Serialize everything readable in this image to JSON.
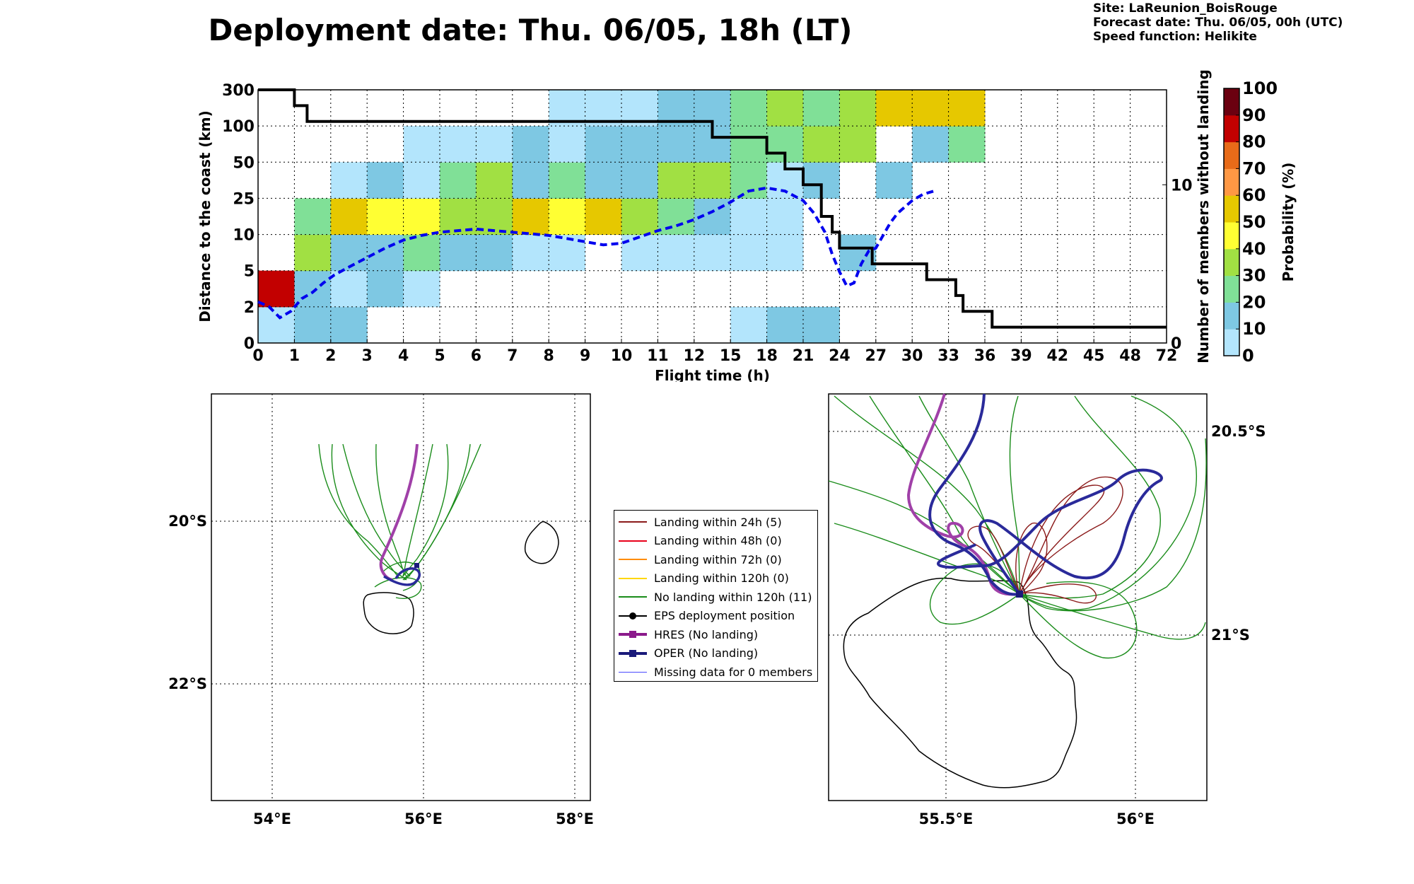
{
  "title": "Deployment date: Thu. 06/05, 18h (LT)",
  "meta": {
    "site": "Site: LaReunion_BoisRouge",
    "forecast": "Forecast date: Thu. 06/05, 00h (UTC)",
    "speed": "Speed function: Helikite"
  },
  "chart_data": [
    {
      "type": "heatmap",
      "xlabel": "Flight time (h)",
      "ylabel": "Distance to the coast (km)",
      "y2label": "Number of members without landing",
      "x_tick_labels": [
        "0",
        "1",
        "2",
        "3",
        "4",
        "5",
        "6",
        "7",
        "8",
        "9",
        "10",
        "11",
        "12",
        "15",
        "18",
        "21",
        "24",
        "27",
        "30",
        "33",
        "36",
        "39",
        "42",
        "45",
        "48",
        "72"
      ],
      "y_tick_labels": [
        "0",
        "2",
        "5",
        "10",
        "25",
        "50",
        "100",
        "300"
      ],
      "y2_ticks": [
        0,
        10
      ],
      "y2_range": [
        0,
        16
      ],
      "colorbar": {
        "label": "Probability (%)",
        "ticks": [
          "0",
          "10",
          "20",
          "30",
          "40",
          "50",
          "60",
          "70",
          "80",
          "90",
          "100"
        ],
        "colors": [
          "#b3e5fc",
          "#7ec8e3",
          "#80e097",
          "#a1e043",
          "#ffff33",
          "#e6c800",
          "#ff9844",
          "#e86b19",
          "#c20000",
          "#6b0010"
        ]
      },
      "cells": [
        {
          "x": 0,
          "y": 0,
          "v": 5
        },
        {
          "x": 1,
          "y": 0,
          "v": 15
        },
        {
          "x": 2,
          "y": 0,
          "v": 15
        },
        {
          "x": 13,
          "y": 0,
          "v": 5
        },
        {
          "x": 14,
          "y": 0,
          "v": 15
        },
        {
          "x": 15,
          "y": 0,
          "v": 15
        },
        {
          "x": 0,
          "y": 1,
          "v": 85
        },
        {
          "x": 1,
          "y": 1,
          "v": 15
        },
        {
          "x": 2,
          "y": 1,
          "v": 5
        },
        {
          "x": 3,
          "y": 1,
          "v": 15
        },
        {
          "x": 4,
          "y": 1,
          "v": 5
        },
        {
          "x": 1,
          "y": 2,
          "v": 35
        },
        {
          "x": 2,
          "y": 2,
          "v": 15
        },
        {
          "x": 3,
          "y": 2,
          "v": 15
        },
        {
          "x": 4,
          "y": 2,
          "v": 25
        },
        {
          "x": 5,
          "y": 2,
          "v": 15
        },
        {
          "x": 6,
          "y": 2,
          "v": 15
        },
        {
          "x": 7,
          "y": 2,
          "v": 5
        },
        {
          "x": 8,
          "y": 2,
          "v": 5
        },
        {
          "x": 10,
          "y": 2,
          "v": 5
        },
        {
          "x": 11,
          "y": 2,
          "v": 5
        },
        {
          "x": 12,
          "y": 2,
          "v": 5
        },
        {
          "x": 13,
          "y": 2,
          "v": 5
        },
        {
          "x": 14,
          "y": 2,
          "v": 5
        },
        {
          "x": 16,
          "y": 2,
          "v": 15
        },
        {
          "x": 1,
          "y": 3,
          "v": 25
        },
        {
          "x": 2,
          "y": 3,
          "v": 55
        },
        {
          "x": 3,
          "y": 3,
          "v": 45
        },
        {
          "x": 4,
          "y": 3,
          "v": 45
        },
        {
          "x": 5,
          "y": 3,
          "v": 35
        },
        {
          "x": 6,
          "y": 3,
          "v": 35
        },
        {
          "x": 7,
          "y": 3,
          "v": 55
        },
        {
          "x": 8,
          "y": 3,
          "v": 45
        },
        {
          "x": 9,
          "y": 3,
          "v": 55
        },
        {
          "x": 10,
          "y": 3,
          "v": 35
        },
        {
          "x": 11,
          "y": 3,
          "v": 25
        },
        {
          "x": 12,
          "y": 3,
          "v": 15
        },
        {
          "x": 13,
          "y": 3,
          "v": 5
        },
        {
          "x": 14,
          "y": 3,
          "v": 5
        },
        {
          "x": 2,
          "y": 4,
          "v": 5
        },
        {
          "x": 3,
          "y": 4,
          "v": 15
        },
        {
          "x": 4,
          "y": 4,
          "v": 5
        },
        {
          "x": 5,
          "y": 4,
          "v": 25
        },
        {
          "x": 6,
          "y": 4,
          "v": 35
        },
        {
          "x": 7,
          "y": 4,
          "v": 15
        },
        {
          "x": 8,
          "y": 4,
          "v": 25
        },
        {
          "x": 9,
          "y": 4,
          "v": 15
        },
        {
          "x": 10,
          "y": 4,
          "v": 15
        },
        {
          "x": 11,
          "y": 4,
          "v": 35
        },
        {
          "x": 12,
          "y": 4,
          "v": 35
        },
        {
          "x": 13,
          "y": 4,
          "v": 25
        },
        {
          "x": 14,
          "y": 4,
          "v": 5
        },
        {
          "x": 15,
          "y": 4,
          "v": 15
        },
        {
          "x": 17,
          "y": 4,
          "v": 15
        },
        {
          "x": 4,
          "y": 5,
          "v": 5
        },
        {
          "x": 5,
          "y": 5,
          "v": 5
        },
        {
          "x": 6,
          "y": 5,
          "v": 5
        },
        {
          "x": 7,
          "y": 5,
          "v": 15
        },
        {
          "x": 8,
          "y": 5,
          "v": 5
        },
        {
          "x": 9,
          "y": 5,
          "v": 15
        },
        {
          "x": 10,
          "y": 5,
          "v": 15
        },
        {
          "x": 11,
          "y": 5,
          "v": 15
        },
        {
          "x": 12,
          "y": 5,
          "v": 15
        },
        {
          "x": 13,
          "y": 5,
          "v": 25
        },
        {
          "x": 14,
          "y": 5,
          "v": 25
        },
        {
          "x": 15,
          "y": 5,
          "v": 35
        },
        {
          "x": 16,
          "y": 5,
          "v": 35
        },
        {
          "x": 18,
          "y": 5,
          "v": 15
        },
        {
          "x": 19,
          "y": 5,
          "v": 25
        },
        {
          "x": 8,
          "y": 6,
          "v": 5
        },
        {
          "x": 9,
          "y": 6,
          "v": 5
        },
        {
          "x": 10,
          "y": 6,
          "v": 5
        },
        {
          "x": 11,
          "y": 6,
          "v": 15
        },
        {
          "x": 12,
          "y": 6,
          "v": 15
        },
        {
          "x": 13,
          "y": 6,
          "v": 25
        },
        {
          "x": 14,
          "y": 6,
          "v": 35
        },
        {
          "x": 15,
          "y": 6,
          "v": 25
        },
        {
          "x": 16,
          "y": 6,
          "v": 35
        },
        {
          "x": 17,
          "y": 6,
          "v": 55
        },
        {
          "x": 18,
          "y": 6,
          "v": 55
        },
        {
          "x": 19,
          "y": 6,
          "v": 55
        }
      ],
      "series": [
        {
          "name": "Number of members without landing",
          "style": "solid",
          "color": "#000000",
          "steps": [
            [
              0,
              16
            ],
            [
              1,
              15
            ],
            [
              1.35,
              14
            ],
            [
              12.5,
              13
            ],
            [
              14,
              12
            ],
            [
              14.5,
              11
            ],
            [
              15,
              10
            ],
            [
              15.5,
              8
            ],
            [
              15.8,
              7
            ],
            [
              16,
              6
            ],
            [
              16.9,
              5
            ],
            [
              18.4,
              4
            ],
            [
              19.2,
              3
            ],
            [
              19.4,
              2
            ],
            [
              20.2,
              1
            ],
            [
              25,
              1
            ]
          ]
        },
        {
          "name": "",
          "style": "dashed",
          "color": "#0000ee",
          "points": [
            [
              0,
              2.6
            ],
            [
              0.3,
              2.3
            ],
            [
              0.6,
              1.6
            ],
            [
              0.9,
              2.0
            ],
            [
              1.2,
              2.8
            ],
            [
              1.5,
              3.2
            ],
            [
              1.8,
              3.8
            ],
            [
              2.1,
              4.3
            ],
            [
              2.5,
              4.8
            ],
            [
              3,
              5.4
            ],
            [
              3.5,
              6.0
            ],
            [
              4,
              6.5
            ],
            [
              4.5,
              6.8
            ],
            [
              5,
              7.0
            ],
            [
              5.5,
              7.1
            ],
            [
              6,
              7.2
            ],
            [
              6.5,
              7.1
            ],
            [
              7,
              7.0
            ],
            [
              7.5,
              6.9
            ],
            [
              8,
              6.8
            ],
            [
              8.5,
              6.6
            ],
            [
              9,
              6.4
            ],
            [
              9.5,
              6.2
            ],
            [
              10,
              6.3
            ],
            [
              10.5,
              6.7
            ],
            [
              11,
              7.1
            ],
            [
              11.5,
              7.4
            ],
            [
              12,
              7.8
            ],
            [
              12.5,
              8.3
            ],
            [
              13,
              8.9
            ],
            [
              13.5,
              9.6
            ],
            [
              14,
              9.8
            ],
            [
              14.5,
              9.6
            ],
            [
              15,
              9.0
            ],
            [
              15.3,
              8.2
            ],
            [
              15.6,
              7.0
            ],
            [
              15.8,
              5.6
            ],
            [
              16,
              4.5
            ],
            [
              16.2,
              3.6
            ],
            [
              16.4,
              3.8
            ],
            [
              16.6,
              5.0
            ],
            [
              16.8,
              5.8
            ],
            [
              17,
              6.0
            ],
            [
              17.2,
              6.8
            ],
            [
              17.4,
              7.6
            ],
            [
              17.6,
              8.2
            ],
            [
              18,
              9.0
            ],
            [
              18.3,
              9.4
            ],
            [
              18.6,
              9.6
            ]
          ]
        }
      ]
    },
    {
      "type": "map",
      "lon_ticks": [
        "54°E",
        "56°E",
        "58°E"
      ],
      "lat_ticks": [
        "20°S",
        "22°S"
      ]
    },
    {
      "type": "map",
      "lon_ticks": [
        "55.5°E",
        "56°E"
      ],
      "lat_ticks": [
        "20.5°S",
        "21°S"
      ]
    }
  ],
  "legend": [
    {
      "label": "Landing within 24h (5)",
      "color": "#8b1a1a",
      "width": 2,
      "marker": ""
    },
    {
      "label": "Landing within 48h (0)",
      "color": "#e8001a",
      "width": 2,
      "marker": ""
    },
    {
      "label": "Landing within 72h (0)",
      "color": "#ff8c00",
      "width": 2,
      "marker": ""
    },
    {
      "label": "Landing within 120h (0)",
      "color": "#ffd700",
      "width": 2,
      "marker": ""
    },
    {
      "label": "No landing within 120h (11)",
      "color": "#1a8c1a",
      "width": 2,
      "marker": ""
    },
    {
      "label": "EPS deployment position",
      "color": "#000000",
      "width": 2,
      "marker": "circle"
    },
    {
      "label": "HRES (No landing)",
      "color": "#8b1a8b",
      "width": 4,
      "marker": "square"
    },
    {
      "label": "OPER (No landing)",
      "color": "#1a1a7a",
      "width": 4,
      "marker": "square"
    },
    {
      "label": "Missing data for 0 members",
      "color": "#4a4aff",
      "width": 1,
      "marker": ""
    }
  ]
}
